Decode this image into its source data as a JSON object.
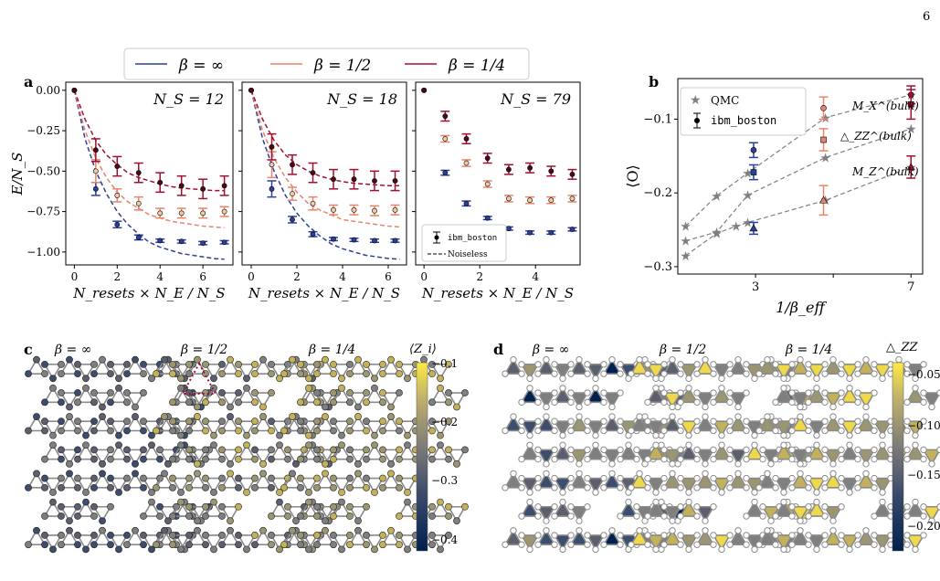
{
  "page_number": "6",
  "legend_top": {
    "entries": [
      {
        "label": "β = ∞",
        "color": "#2b3f9c"
      },
      {
        "label": "β = 1/2",
        "color": "#e8846a"
      },
      {
        "label": "β = 1/4",
        "color": "#a0102e"
      }
    ]
  },
  "colors": {
    "beta_inf": "#2b3f9c",
    "beta_half": "#e8846a",
    "beta_quarter": "#a0102e",
    "qmc": "#7f7f7f"
  },
  "chart_data": [
    {
      "panel": "a",
      "title": "N_S = 12",
      "type": "scatter",
      "xlabel": "N_resets × N_E / N_S",
      "ylabel": "E/N_S",
      "xlim": [
        -0.4,
        7.4
      ],
      "ylim": [
        -1.08,
        0.05
      ],
      "xticks": [
        0,
        2,
        4,
        6
      ],
      "yticks": [
        0.0,
        -0.25,
        -0.5,
        -0.75,
        -1.0
      ],
      "ytick_labels": [
        "0.00",
        "−0.25",
        "−0.50",
        "−0.75",
        "−1.00"
      ],
      "series": [
        {
          "name": "β = ∞",
          "x": [
            0,
            1,
            2,
            3,
            4,
            5,
            6,
            7
          ],
          "y": [
            0,
            -0.61,
            -0.83,
            -0.91,
            -0.93,
            -0.935,
            -0.945,
            -0.94
          ],
          "err": [
            0,
            0.04,
            0.02,
            0.015,
            0.01,
            0.01,
            0.01,
            0.01
          ],
          "noiseless_x": [
            0,
            0.5,
            1,
            1.5,
            2,
            2.5,
            3,
            3.5,
            4,
            4.5,
            5,
            5.5,
            6,
            6.5,
            7
          ],
          "noiseless_y": [
            0,
            -0.3,
            -0.5,
            -0.64,
            -0.75,
            -0.83,
            -0.89,
            -0.94,
            -0.97,
            -0.99,
            -1.01,
            -1.02,
            -1.03,
            -1.04,
            -1.045
          ]
        },
        {
          "name": "β = 1/2",
          "x": [
            0,
            1,
            2,
            3,
            4,
            5,
            6,
            7
          ],
          "y": [
            0,
            -0.5,
            -0.65,
            -0.7,
            -0.76,
            -0.76,
            -0.76,
            -0.75
          ],
          "err": [
            0,
            0.07,
            0.04,
            0.04,
            0.03,
            0.03,
            0.03,
            0.03
          ],
          "noiseless_x": [
            0,
            0.5,
            1,
            1.5,
            2,
            2.5,
            3,
            3.5,
            4,
            4.5,
            5,
            5.5,
            6,
            6.5,
            7
          ],
          "noiseless_y": [
            0,
            -0.25,
            -0.42,
            -0.54,
            -0.63,
            -0.69,
            -0.73,
            -0.77,
            -0.79,
            -0.81,
            -0.82,
            -0.83,
            -0.84,
            -0.845,
            -0.85
          ]
        },
        {
          "name": "β = 1/4",
          "x": [
            0,
            1,
            2,
            3,
            4,
            5,
            6,
            7
          ],
          "y": [
            0,
            -0.37,
            -0.47,
            -0.51,
            -0.57,
            -0.59,
            -0.61,
            -0.59
          ],
          "err": [
            0,
            0.07,
            0.06,
            0.06,
            0.06,
            0.06,
            0.06,
            0.06
          ],
          "noiseless_x": [
            0,
            0.5,
            1,
            1.5,
            2,
            2.5,
            3,
            3.5,
            4,
            4.5,
            5,
            5.5,
            6,
            6.5,
            7
          ],
          "noiseless_y": [
            0,
            -0.18,
            -0.31,
            -0.4,
            -0.46,
            -0.51,
            -0.54,
            -0.56,
            -0.58,
            -0.595,
            -0.605,
            -0.61,
            -0.615,
            -0.62,
            -0.62
          ]
        }
      ]
    },
    {
      "panel": "a2",
      "title": "N_S = 18",
      "type": "scatter",
      "xlabel": "N_resets × N_E / N_S",
      "xlim": [
        -0.4,
        6.8
      ],
      "ylim": [
        -1.08,
        0.05
      ],
      "xticks": [
        0,
        2,
        4,
        6
      ],
      "yticks": [
        0.0,
        -0.25,
        -0.5,
        -0.75,
        -1.0
      ],
      "series": [
        {
          "name": "β = ∞",
          "x": [
            0,
            0.9,
            1.8,
            2.7,
            3.6,
            4.5,
            5.4,
            6.3
          ],
          "y": [
            0,
            -0.61,
            -0.8,
            -0.89,
            -0.92,
            -0.925,
            -0.93,
            -0.93
          ],
          "err": [
            0,
            0.05,
            0.02,
            0.015,
            0.01,
            0.01,
            0.01,
            0.01
          ],
          "noiseless_x": [
            0,
            0.5,
            1,
            1.5,
            2,
            2.5,
            3,
            3.5,
            4,
            4.5,
            5,
            5.5,
            6,
            6.5
          ],
          "noiseless_y": [
            0,
            -0.3,
            -0.5,
            -0.65,
            -0.76,
            -0.84,
            -0.9,
            -0.95,
            -0.98,
            -1.0,
            -1.02,
            -1.03,
            -1.04,
            -1.045
          ]
        },
        {
          "name": "β = 1/2",
          "x": [
            0,
            0.9,
            1.8,
            2.7,
            3.6,
            4.5,
            5.4,
            6.3
          ],
          "y": [
            0,
            -0.46,
            -0.64,
            -0.7,
            -0.74,
            -0.74,
            -0.745,
            -0.74
          ],
          "err": [
            0,
            0.08,
            0.04,
            0.04,
            0.03,
            0.03,
            0.03,
            0.03
          ],
          "noiseless_x": [
            0,
            0.5,
            1,
            1.5,
            2,
            2.5,
            3,
            3.5,
            4,
            4.5,
            5,
            5.5,
            6,
            6.5
          ],
          "noiseless_y": [
            0,
            -0.25,
            -0.42,
            -0.54,
            -0.63,
            -0.7,
            -0.74,
            -0.77,
            -0.8,
            -0.81,
            -0.82,
            -0.83,
            -0.84,
            -0.845
          ]
        },
        {
          "name": "β = 1/4",
          "x": [
            0,
            0.9,
            1.8,
            2.7,
            3.6,
            4.5,
            5.4,
            6.3
          ],
          "y": [
            0,
            -0.35,
            -0.46,
            -0.51,
            -0.55,
            -0.55,
            -0.56,
            -0.56
          ],
          "err": [
            0,
            0.08,
            0.06,
            0.06,
            0.06,
            0.06,
            0.06,
            0.06
          ],
          "noiseless_x": [
            0,
            0.5,
            1,
            1.5,
            2,
            2.5,
            3,
            3.5,
            4,
            4.5,
            5,
            5.5,
            6,
            6.5
          ],
          "noiseless_y": [
            0,
            -0.18,
            -0.31,
            -0.4,
            -0.46,
            -0.5,
            -0.53,
            -0.55,
            -0.565,
            -0.575,
            -0.58,
            -0.585,
            -0.59,
            -0.59
          ]
        }
      ]
    },
    {
      "panel": "a3",
      "title": "N_S = 79",
      "type": "scatter",
      "xlabel": "N_resets × N_E / N_S",
      "xlim": [
        -0.3,
        5.6
      ],
      "ylim": [
        -1.08,
        0.05
      ],
      "xticks": [
        0,
        2,
        4
      ],
      "yticks": [
        0.0,
        -0.25,
        -0.5,
        -0.75,
        -1.0
      ],
      "legend": {
        "entries": [
          "ibm_boston",
          "Noiseless"
        ],
        "position": "lower-left"
      },
      "series": [
        {
          "name": "β = ∞",
          "x": [
            0,
            0.76,
            1.52,
            2.28,
            3.04,
            3.8,
            4.56,
            5.32
          ],
          "y": [
            0,
            -0.51,
            -0.7,
            -0.79,
            -0.855,
            -0.88,
            -0.88,
            -0.86
          ],
          "err": [
            0,
            0.015,
            0.015,
            0.01,
            0.01,
            0.01,
            0.01,
            0.01
          ]
        },
        {
          "name": "β = 1/2",
          "x": [
            0,
            0.76,
            1.52,
            2.28,
            3.04,
            3.8,
            4.56,
            5.32
          ],
          "y": [
            0,
            -0.3,
            -0.45,
            -0.58,
            -0.67,
            -0.68,
            -0.68,
            -0.67
          ],
          "err": [
            0,
            0.02,
            0.02,
            0.02,
            0.02,
            0.02,
            0.02,
            0.02
          ]
        },
        {
          "name": "β = 1/4",
          "x": [
            0,
            0.76,
            1.52,
            2.28,
            3.04,
            3.8,
            4.56,
            5.32
          ],
          "y": [
            0,
            -0.16,
            -0.3,
            -0.42,
            -0.49,
            -0.48,
            -0.5,
            -0.52
          ],
          "err": [
            0,
            0.03,
            0.03,
            0.03,
            0.03,
            0.03,
            0.03,
            0.03
          ]
        }
      ]
    },
    {
      "panel": "b",
      "type": "scatter",
      "xlabel": "1/β_eff",
      "ylabel": "⟨O⟩",
      "xlim": [
        1.0,
        7.3
      ],
      "ylim": [
        -0.31,
        -0.045
      ],
      "xticks": [
        3,
        5,
        7
      ],
      "xtick_labels": [
        "3",
        "",
        "7"
      ],
      "yticks": [
        -0.1,
        -0.2,
        -0.3
      ],
      "legend": {
        "entries": [
          "QMC",
          "ibm_boston"
        ],
        "position": "top-left"
      },
      "annotations": [
        "M_X^(bulk)",
        "△_ZZ^(bulk)",
        "M_Z^(bulk)"
      ],
      "qmc": [
        {
          "name": "M_X",
          "x": [
            1.2,
            2.0,
            2.8,
            4.8,
            7.0
          ],
          "y": [
            -0.245,
            -0.204,
            -0.173,
            -0.098,
            -0.067
          ]
        },
        {
          "name": "ZZ",
          "x": [
            1.2,
            2.0,
            2.8,
            4.8,
            7.0
          ],
          "y": [
            -0.265,
            -0.253,
            -0.203,
            -0.152,
            -0.113
          ]
        },
        {
          "name": "M_Z",
          "x": [
            1.2,
            2.0,
            2.5,
            2.8,
            4.8,
            7.0
          ],
          "y": [
            -0.285,
            -0.255,
            -0.245,
            -0.24,
            -0.21,
            -0.165
          ]
        }
      ],
      "ibm": [
        {
          "x": [
            2.95,
            4.75,
            7.0
          ],
          "y": [
            -0.142,
            -0.085,
            -0.067
          ],
          "err": [
            0.01,
            0.015,
            0.012
          ],
          "marker": "circle",
          "colors": [
            "#2b3f9c",
            "#e8846a",
            "#a0102e"
          ]
        },
        {
          "x": [
            2.95,
            4.75,
            7.0
          ],
          "y": [
            -0.172,
            -0.128,
            -0.08
          ],
          "err": [
            0.01,
            0.015,
            0.02
          ],
          "marker": "square",
          "colors": [
            "#2b3f9c",
            "#e8846a",
            "#a0102e"
          ]
        },
        {
          "x": [
            2.95,
            4.75,
            7.0
          ],
          "y": [
            -0.248,
            -0.21,
            -0.165
          ],
          "err": [
            0.008,
            0.02,
            0.015
          ],
          "marker": "triangle",
          "colors": [
            "#2b3f9c",
            "#e8846a",
            "#a0102e"
          ]
        }
      ]
    }
  ],
  "panel_labels": {
    "a": "a",
    "b": "b",
    "c": "c",
    "d": "d"
  },
  "panel_c": {
    "titles": [
      "β = ∞",
      "β = 1/2",
      "β = 1/4"
    ],
    "colorbar_label": "⟨Z_i⟩",
    "colorbar_ticks": [
      "−0.1",
      "−0.2",
      "−0.3",
      "−0.4"
    ]
  },
  "panel_d": {
    "titles": [
      "β = ∞",
      "β = 1/2",
      "β = 1/4"
    ],
    "colorbar_label": "△_ZZ",
    "colorbar_ticks": [
      "−0.05",
      "−0.10",
      "−0.15",
      "−0.20"
    ]
  }
}
